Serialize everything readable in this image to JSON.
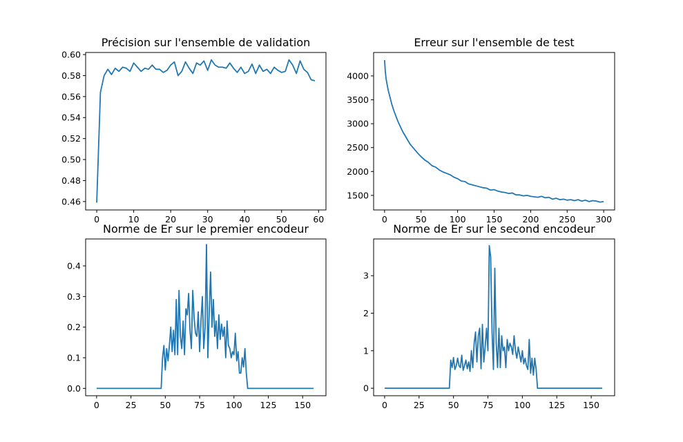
{
  "colors": {
    "series": "#1f77b4",
    "background": "#ffffff",
    "axis": "#000000"
  },
  "chart_data": [
    {
      "type": "line",
      "title": "Précision sur l'ensemble de validation",
      "xlabel": "",
      "ylabel": "",
      "xlim": [
        -3,
        62
      ],
      "ylim": [
        0.452,
        0.602
      ],
      "xticks": [
        0,
        10,
        20,
        30,
        40,
        50,
        60
      ],
      "xtick_labels": [
        "0",
        "10",
        "20",
        "30",
        "40",
        "50",
        "60"
      ],
      "yticks": [
        0.46,
        0.48,
        0.5,
        0.52,
        0.54,
        0.56,
        0.58,
        0.6
      ],
      "ytick_labels": [
        "0.46",
        "0.48",
        "0.50",
        "0.52",
        "0.54",
        "0.56",
        "0.58",
        "0.60"
      ],
      "grid": false,
      "series": [
        {
          "x": [
            0,
            1,
            2,
            3,
            4,
            5,
            6,
            7,
            8,
            9,
            10,
            11,
            12,
            13,
            14,
            15,
            16,
            17,
            18,
            19,
            20,
            21,
            22,
            23,
            24,
            25,
            26,
            27,
            28,
            29,
            30,
            31,
            32,
            33,
            34,
            35,
            36,
            37,
            38,
            39,
            40,
            41,
            42,
            43,
            44,
            45,
            46,
            47,
            48,
            49,
            50,
            51,
            52,
            53,
            54,
            55,
            56,
            57,
            58,
            59
          ],
          "values": [
            0.459,
            0.564,
            0.58,
            0.586,
            0.581,
            0.587,
            0.584,
            0.588,
            0.587,
            0.584,
            0.592,
            0.588,
            0.584,
            0.587,
            0.586,
            0.59,
            0.586,
            0.586,
            0.583,
            0.585,
            0.59,
            0.593,
            0.58,
            0.584,
            0.593,
            0.587,
            0.582,
            0.592,
            0.59,
            0.594,
            0.585,
            0.595,
            0.59,
            0.588,
            0.588,
            0.587,
            0.592,
            0.587,
            0.583,
            0.588,
            0.582,
            0.584,
            0.591,
            0.582,
            0.59,
            0.584,
            0.586,
            0.582,
            0.588,
            0.585,
            0.583,
            0.584,
            0.595,
            0.59,
            0.582,
            0.594,
            0.586,
            0.583,
            0.576,
            0.575
          ]
        }
      ]
    },
    {
      "type": "line",
      "title": "Erreur sur l'ensemble de test",
      "xlabel": "",
      "ylabel": "",
      "xlim": [
        -15,
        315
      ],
      "ylim": [
        1195,
        4490
      ],
      "xticks": [
        0,
        50,
        100,
        150,
        200,
        250,
        300
      ],
      "xtick_labels": [
        "0",
        "50",
        "100",
        "150",
        "200",
        "250",
        "300"
      ],
      "yticks": [
        1500,
        2000,
        2500,
        3000,
        3500,
        4000
      ],
      "ytick_labels": [
        "1500",
        "2000",
        "2500",
        "3000",
        "3500",
        "4000"
      ],
      "grid": false,
      "series": [
        {
          "x": [
            0,
            1,
            2,
            3,
            5,
            8,
            10,
            13,
            15,
            18,
            20,
            25,
            30,
            35,
            40,
            45,
            50,
            55,
            60,
            65,
            70,
            75,
            80,
            85,
            90,
            95,
            100,
            105,
            110,
            115,
            120,
            125,
            130,
            135,
            140,
            145,
            150,
            155,
            160,
            165,
            170,
            175,
            180,
            185,
            190,
            195,
            200,
            205,
            210,
            215,
            220,
            225,
            230,
            235,
            240,
            245,
            250,
            255,
            260,
            265,
            270,
            275,
            280,
            285,
            290,
            295,
            300
          ],
          "values": [
            4330,
            4100,
            3950,
            3860,
            3700,
            3520,
            3400,
            3260,
            3180,
            3060,
            2990,
            2830,
            2700,
            2570,
            2480,
            2390,
            2310,
            2240,
            2190,
            2120,
            2090,
            2030,
            1990,
            1960,
            1930,
            1880,
            1850,
            1800,
            1790,
            1740,
            1720,
            1700,
            1680,
            1660,
            1650,
            1610,
            1620,
            1590,
            1570,
            1560,
            1540,
            1550,
            1510,
            1510,
            1490,
            1500,
            1480,
            1470,
            1460,
            1480,
            1450,
            1460,
            1420,
            1440,
            1410,
            1420,
            1400,
            1410,
            1390,
            1410,
            1380,
            1400,
            1370,
            1390,
            1380,
            1360,
            1370
          ]
        }
      ]
    },
    {
      "type": "line",
      "title": "Norme de Er sur le premier encodeur",
      "xlabel": "",
      "ylabel": "",
      "xlim": [
        -8,
        167
      ],
      "ylim": [
        -0.024,
        0.488
      ],
      "xticks": [
        0,
        25,
        50,
        75,
        100,
        125,
        150
      ],
      "xtick_labels": [
        "0",
        "25",
        "50",
        "75",
        "100",
        "125",
        "150"
      ],
      "yticks": [
        0.0,
        0.1,
        0.2,
        0.3,
        0.4
      ],
      "ytick_labels": [
        "0.0",
        "0.1",
        "0.2",
        "0.3",
        "0.4"
      ],
      "grid": false,
      "series": [
        {
          "x": [
            0,
            47,
            48,
            49,
            50,
            51,
            52,
            53,
            54,
            55,
            56,
            57,
            58,
            59,
            60,
            61,
            62,
            63,
            64,
            65,
            66,
            67,
            68,
            69,
            70,
            71,
            72,
            73,
            74,
            75,
            76,
            77,
            78,
            79,
            80,
            81,
            82,
            83,
            84,
            85,
            86,
            87,
            88,
            89,
            90,
            91,
            92,
            93,
            94,
            95,
            96,
            97,
            98,
            99,
            100,
            101,
            102,
            103,
            104,
            105,
            106,
            107,
            108,
            109,
            110,
            111,
            158
          ],
          "values": [
            0,
            0,
            0.1,
            0.14,
            0.06,
            0.13,
            0.09,
            0.14,
            0.2,
            0.12,
            0.19,
            0.11,
            0.29,
            0.11,
            0.32,
            0.17,
            0.13,
            0.22,
            0.11,
            0.26,
            0.24,
            0.31,
            0.19,
            0.13,
            0.32,
            0.23,
            0.18,
            0.17,
            0.25,
            0.12,
            0.22,
            0.3,
            0.13,
            0.2,
            0.47,
            0.1,
            0.25,
            0.38,
            0.2,
            0.29,
            0.17,
            0.22,
            0.13,
            0.24,
            0.16,
            0.21,
            0.17,
            0.2,
            0.1,
            0.22,
            0.14,
            0.13,
            0.1,
            0.12,
            0.11,
            0.18,
            0.09,
            0.12,
            0.05,
            0.05,
            0.1,
            0.07,
            0.13,
            0.05,
            0,
            0,
            0
          ]
        }
      ]
    },
    {
      "type": "line",
      "title": "Norme de Er sur le second encodeur",
      "xlabel": "",
      "ylabel": "",
      "xlim": [
        -8,
        167
      ],
      "ylim": [
        -0.2,
        3.98
      ],
      "xticks": [
        0,
        25,
        50,
        75,
        100,
        125,
        150
      ],
      "xtick_labels": [
        "0",
        "25",
        "50",
        "75",
        "100",
        "125",
        "150"
      ],
      "yticks": [
        0,
        1,
        2,
        3
      ],
      "ytick_labels": [
        "0",
        "1",
        "2",
        "3"
      ],
      "grid": false,
      "series": [
        {
          "x": [
            0,
            47,
            48,
            49,
            50,
            51,
            52,
            53,
            54,
            55,
            56,
            57,
            58,
            59,
            60,
            61,
            62,
            63,
            64,
            65,
            66,
            67,
            68,
            69,
            70,
            71,
            72,
            73,
            74,
            75,
            76,
            77,
            78,
            79,
            80,
            81,
            82,
            83,
            84,
            85,
            86,
            87,
            88,
            89,
            90,
            91,
            92,
            93,
            94,
            95,
            96,
            97,
            98,
            99,
            100,
            101,
            102,
            103,
            104,
            105,
            106,
            107,
            108,
            109,
            110,
            111,
            158
          ],
          "values": [
            0,
            0,
            0.75,
            0.55,
            0.82,
            0.5,
            0.6,
            0.8,
            0.6,
            0.55,
            0.88,
            0.48,
            0.6,
            0.75,
            0.52,
            0.7,
            0.45,
            1.0,
            0.55,
            1.2,
            1.5,
            0.7,
            1.4,
            1.6,
            0.52,
            1.7,
            0.7,
            1.1,
            1.6,
            1.0,
            3.8,
            3.5,
            1.5,
            0.5,
            3.2,
            1.2,
            0.55,
            1.6,
            0.55,
            1.4,
            1.0,
            1.1,
            0.55,
            1.3,
            1.0,
            1.2,
            1.1,
            0.9,
            1.4,
            1.0,
            0.8,
            1.1,
            0.9,
            0.7,
            1.0,
            0.65,
            0.8,
            0.6,
            0.5,
            1.3,
            0.4,
            0.8,
            0.35,
            0.8,
            0.5,
            0,
            0
          ]
        }
      ]
    }
  ]
}
